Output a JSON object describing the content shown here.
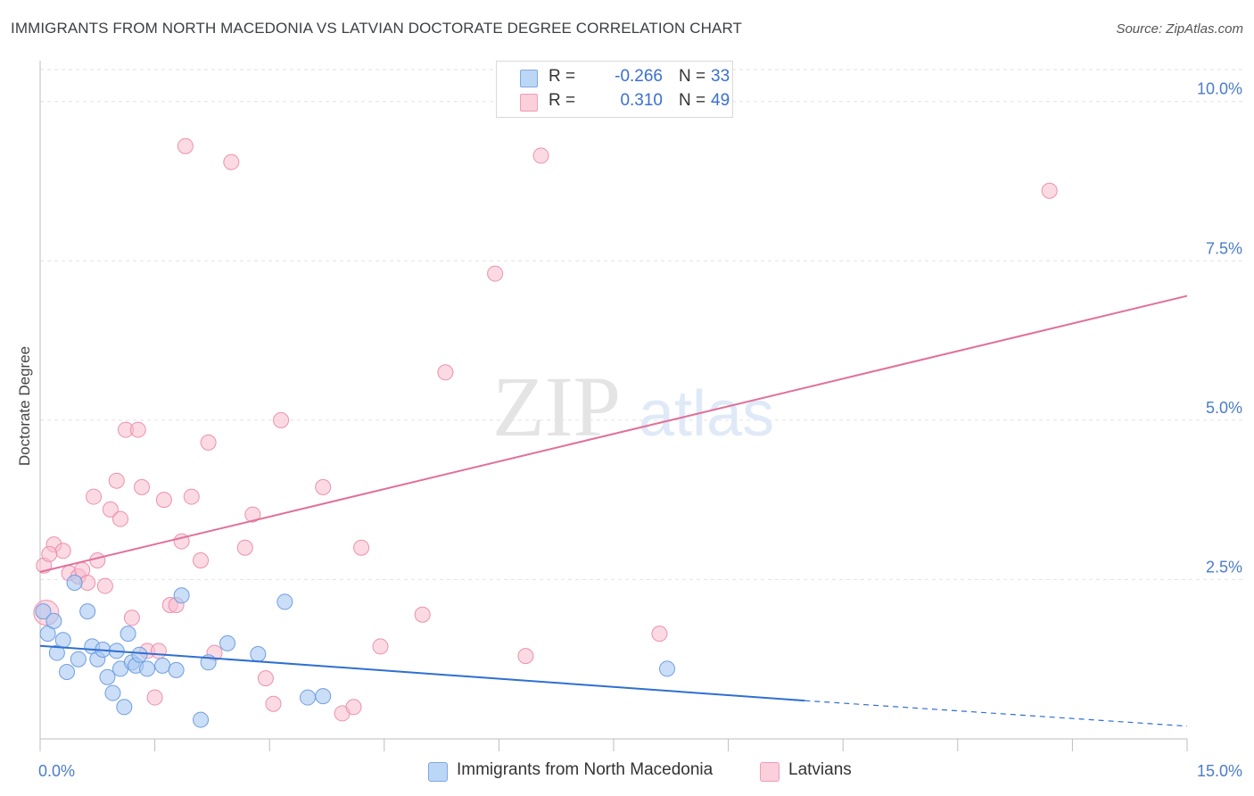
{
  "title": "IMMIGRANTS FROM NORTH MACEDONIA VS LATVIAN DOCTORATE DEGREE CORRELATION CHART",
  "source": "Source: ZipAtlas.com",
  "watermark": {
    "zip": "ZIP",
    "atlas": "atlas"
  },
  "legend": {
    "r_label": "R =",
    "n_label": "N =",
    "series1": {
      "r": "-0.266",
      "n": "33"
    },
    "series2": {
      "r": "0.310",
      "n": "49"
    }
  },
  "colors": {
    "blue_fill": "#a9c8f2",
    "blue_stroke": "#6f9ee0",
    "blue_line": "#2f6fd1",
    "pink_fill": "#f8bccd",
    "pink_stroke": "#ec91ad",
    "pink_line": "#e0709a",
    "tick_text": "#4a7cc9"
  },
  "chart_data": {
    "type": "scatter",
    "title": "IMMIGRANTS FROM NORTH MACEDONIA VS LATVIAN DOCTORATE DEGREE CORRELATION CHART",
    "xlabel": "",
    "ylabel": "Doctorate Degree",
    "xlim": [
      0,
      15
    ],
    "ylim": [
      0,
      10.5
    ],
    "x_tick_labels": [
      "0.0%",
      "15.0%"
    ],
    "y_tick_values": [
      2.5,
      5.0,
      7.5,
      10.0
    ],
    "y_tick_labels": [
      "2.5%",
      "5.0%",
      "7.5%",
      "10.0%"
    ],
    "grid": true,
    "legend_position": "bottom",
    "series": [
      {
        "name": "Immigrants from North Macedonia",
        "color": "#a9c8f2",
        "trend": {
          "x": [
            0,
            10
          ],
          "y": [
            1.46,
            0.6
          ],
          "dashed_extension_to": [
            15,
            0.2
          ]
        },
        "points": [
          [
            0.04,
            2.0
          ],
          [
            0.1,
            1.65
          ],
          [
            0.18,
            1.85
          ],
          [
            0.22,
            1.35
          ],
          [
            0.3,
            1.55
          ],
          [
            0.35,
            1.05
          ],
          [
            0.45,
            2.45
          ],
          [
            0.5,
            1.25
          ],
          [
            0.62,
            2.0
          ],
          [
            0.68,
            1.45
          ],
          [
            0.75,
            1.25
          ],
          [
            0.82,
            1.4
          ],
          [
            0.88,
            0.97
          ],
          [
            0.95,
            0.72
          ],
          [
            1.0,
            1.38
          ],
          [
            1.05,
            1.1
          ],
          [
            1.1,
            0.5
          ],
          [
            1.15,
            1.65
          ],
          [
            1.2,
            1.2
          ],
          [
            1.25,
            1.15
          ],
          [
            1.3,
            1.32
          ],
          [
            1.4,
            1.1
          ],
          [
            1.6,
            1.15
          ],
          [
            1.78,
            1.08
          ],
          [
            1.85,
            2.25
          ],
          [
            2.2,
            1.2
          ],
          [
            2.45,
            1.5
          ],
          [
            2.85,
            1.33
          ],
          [
            3.2,
            2.15
          ],
          [
            3.5,
            0.65
          ],
          [
            3.7,
            0.67
          ],
          [
            2.1,
            0.3
          ],
          [
            8.2,
            1.1
          ]
        ]
      },
      {
        "name": "Latvians",
        "color": "#f8bccd",
        "trend": {
          "x": [
            0,
            15
          ],
          "y": [
            2.62,
            6.95
          ]
        },
        "points": [
          [
            0.05,
            2.72
          ],
          [
            0.18,
            3.05
          ],
          [
            0.3,
            2.95
          ],
          [
            0.38,
            2.6
          ],
          [
            0.5,
            2.55
          ],
          [
            0.55,
            2.65
          ],
          [
            0.62,
            2.45
          ],
          [
            0.7,
            3.8
          ],
          [
            0.75,
            2.8
          ],
          [
            0.85,
            2.4
          ],
          [
            0.92,
            3.6
          ],
          [
            1.0,
            4.05
          ],
          [
            1.05,
            3.45
          ],
          [
            1.12,
            4.85
          ],
          [
            1.2,
            1.9
          ],
          [
            1.28,
            4.85
          ],
          [
            1.33,
            3.95
          ],
          [
            1.4,
            1.38
          ],
          [
            1.5,
            0.65
          ],
          [
            1.55,
            1.38
          ],
          [
            1.62,
            3.75
          ],
          [
            1.7,
            2.1
          ],
          [
            1.78,
            2.1
          ],
          [
            1.85,
            3.1
          ],
          [
            1.9,
            9.3
          ],
          [
            1.98,
            3.8
          ],
          [
            2.1,
            2.8
          ],
          [
            2.2,
            4.65
          ],
          [
            2.28,
            1.35
          ],
          [
            2.5,
            9.05
          ],
          [
            2.68,
            3.0
          ],
          [
            2.78,
            3.52
          ],
          [
            2.95,
            0.95
          ],
          [
            3.05,
            0.55
          ],
          [
            3.15,
            5.0
          ],
          [
            3.7,
            3.95
          ],
          [
            3.95,
            0.4
          ],
          [
            4.1,
            0.5
          ],
          [
            4.2,
            3.0
          ],
          [
            4.45,
            1.45
          ],
          [
            5.0,
            1.95
          ],
          [
            5.3,
            5.75
          ],
          [
            5.95,
            7.3
          ],
          [
            6.35,
            1.3
          ],
          [
            6.55,
            9.15
          ],
          [
            8.1,
            1.65
          ],
          [
            13.2,
            8.6
          ],
          [
            0.08,
            1.98
          ],
          [
            0.12,
            2.9
          ]
        ]
      }
    ]
  },
  "bottom_legend": {
    "series1": "Immigrants from North Macedonia",
    "series2": "Latvians"
  }
}
